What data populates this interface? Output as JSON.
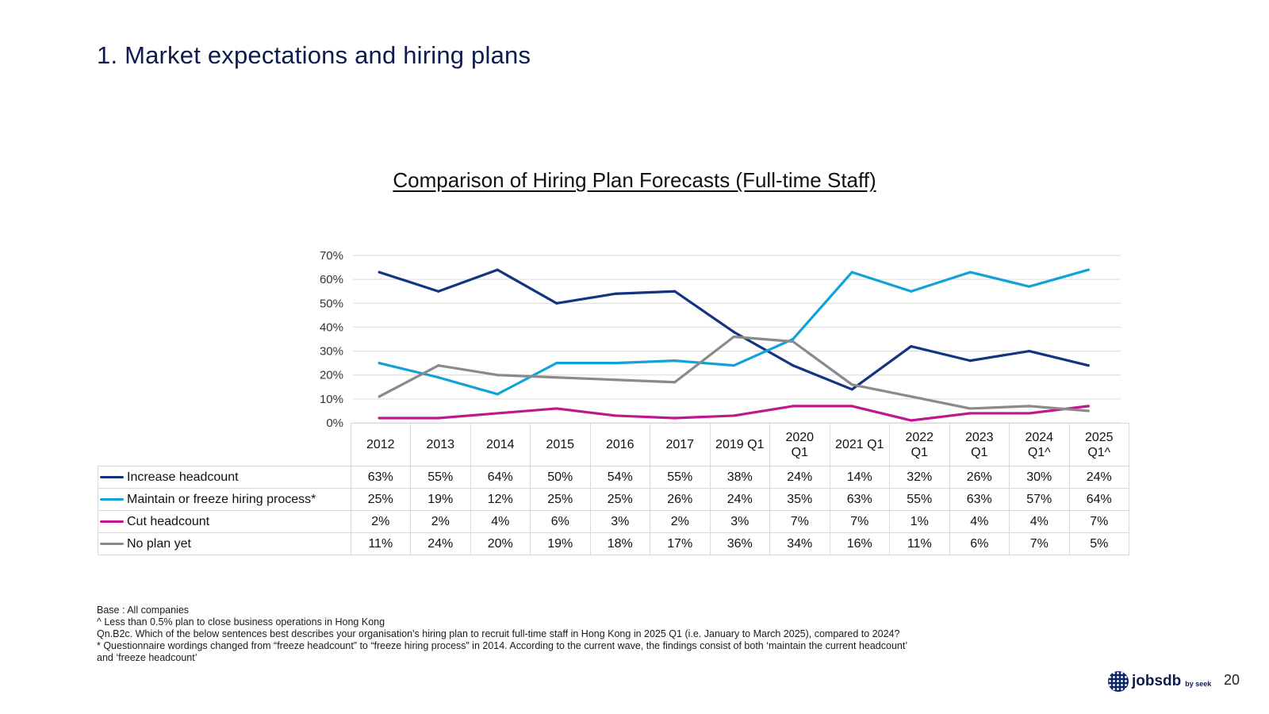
{
  "page": {
    "title": "1. Market expectations and hiring plans",
    "page_number": "20"
  },
  "chart_data": {
    "type": "line",
    "title": "Comparison of Hiring Plan Forecasts (Full-time Staff)",
    "categories": [
      "2012",
      "2013",
      "2014",
      "2015",
      "2016",
      "2017",
      "2019 Q1",
      "2020\nQ1",
      "2021 Q1",
      "2022\nQ1",
      "2023\nQ1",
      "2024\nQ1^",
      "2025\nQ1^"
    ],
    "y_ticks": [
      "70%",
      "60%",
      "50%",
      "40%",
      "30%",
      "20%",
      "10%",
      "0%"
    ],
    "ylim": [
      0,
      70
    ],
    "grid": true,
    "legend": "table-below",
    "series": [
      {
        "name": "Increase headcount",
        "color": "#13347f",
        "values": [
          63,
          55,
          64,
          50,
          54,
          55,
          38,
          24,
          14,
          32,
          26,
          30,
          24
        ],
        "labels": [
          "63%",
          "55%",
          "64%",
          "50%",
          "54%",
          "55%",
          "38%",
          "24%",
          "14%",
          "32%",
          "26%",
          "30%",
          "24%"
        ]
      },
      {
        "name": "Maintain or freeze hiring process*",
        "color": "#12a2da",
        "values": [
          25,
          19,
          12,
          25,
          25,
          26,
          24,
          35,
          63,
          55,
          63,
          57,
          64
        ],
        "labels": [
          "25%",
          "19%",
          "12%",
          "25%",
          "25%",
          "26%",
          "24%",
          "35%",
          "63%",
          "55%",
          "63%",
          "57%",
          "64%"
        ]
      },
      {
        "name": "Cut headcount",
        "color": "#c0188c",
        "values": [
          2,
          2,
          4,
          6,
          3,
          2,
          3,
          7,
          7,
          1,
          4,
          4,
          7
        ],
        "labels": [
          "2%",
          "2%",
          "4%",
          "6%",
          "3%",
          "2%",
          "3%",
          "7%",
          "7%",
          "1%",
          "4%",
          "4%",
          "7%"
        ]
      },
      {
        "name": "No plan yet",
        "color": "#8a8a8a",
        "values": [
          11,
          24,
          20,
          19,
          18,
          17,
          36,
          34,
          16,
          11,
          6,
          7,
          5
        ],
        "labels": [
          "11%",
          "24%",
          "20%",
          "19%",
          "18%",
          "17%",
          "36%",
          "34%",
          "16%",
          "11%",
          "6%",
          "7%",
          "5%"
        ]
      }
    ]
  },
  "footnotes": [
    "Base : All companies",
    "^ Less than 0.5% plan to close business operations in Hong Kong",
    "Qn.B2c. Which of the below sentences best describes your organisation's hiring plan to recruit full-time staff in Hong Kong in 2025 Q1 (i.e. January to March 2025), compared to 2024?",
    "* Questionnaire wordings changed from “freeze headcount” to “freeze hiring process” in 2014.  According to the current wave, the findings consist of both ‘maintain the current headcount’",
    "and ‘freeze headcount’"
  ],
  "brand": {
    "name": "jobsdb",
    "sub": "by seek"
  }
}
